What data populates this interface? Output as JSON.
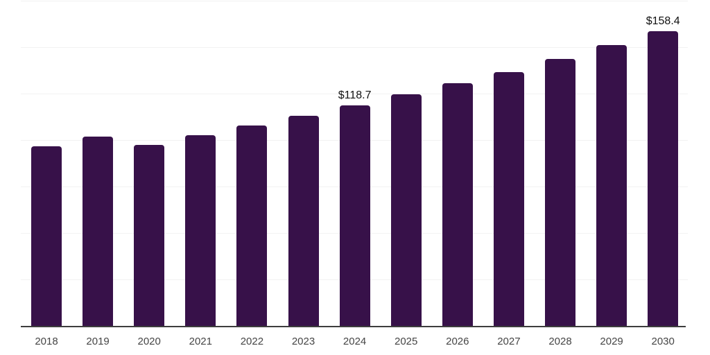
{
  "chart_data": {
    "type": "bar",
    "title": "",
    "xlabel": "",
    "ylabel": "",
    "categories": [
      "2018",
      "2019",
      "2020",
      "2021",
      "2022",
      "2023",
      "2024",
      "2025",
      "2026",
      "2027",
      "2028",
      "2029",
      "2030"
    ],
    "values": [
      96.5,
      101.7,
      97.4,
      102.6,
      107.8,
      113.0,
      118.7,
      124.7,
      130.6,
      136.6,
      143.8,
      151.0,
      158.4
    ],
    "data_labels": {
      "2024": "$118.7",
      "2030": "$158.4"
    },
    "ylim": [
      0,
      175
    ],
    "grid_step": 25,
    "grid": true,
    "legend": false,
    "bar_color": "#371149",
    "axis_line_color": "#3d3d3d",
    "grid_color": "#f2f2f2",
    "tick_label_color": "#454545",
    "data_label_color": "#111111"
  }
}
